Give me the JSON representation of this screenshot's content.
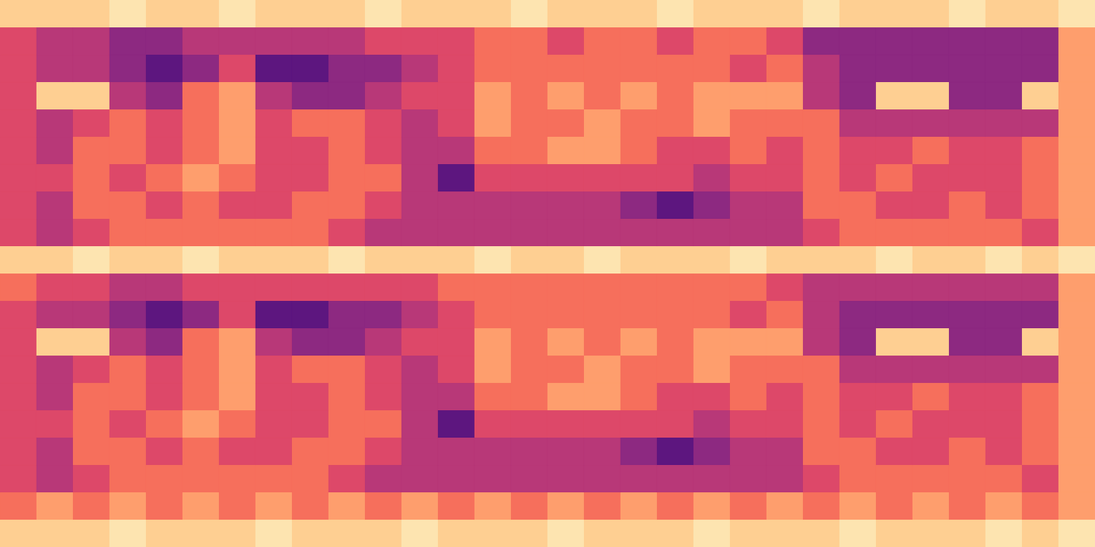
{
  "chart_data": {
    "type": "heatmap",
    "tick_labels": false,
    "grid": false,
    "color_range": [
      0,
      9
    ],
    "cells": [
      [
        8,
        8,
        8,
        9,
        8,
        8,
        9,
        8,
        8,
        8,
        9,
        8,
        8,
        8,
        9,
        8,
        8,
        8,
        9,
        8,
        8,
        8,
        9,
        8,
        8,
        8,
        9,
        8,
        8,
        9
      ],
      [
        5,
        4,
        4,
        3,
        3,
        4,
        4,
        4,
        4,
        4,
        5,
        5,
        5,
        6,
        6,
        5,
        6,
        6,
        5,
        6,
        6,
        5,
        3,
        3,
        3,
        3,
        3,
        3,
        3,
        7
      ],
      [
        5,
        4,
        4,
        3,
        2,
        3,
        5,
        2,
        2,
        3,
        3,
        4,
        5,
        6,
        6,
        6,
        6,
        6,
        6,
        6,
        5,
        6,
        4,
        3,
        3,
        3,
        3,
        3,
        3,
        7
      ],
      [
        5,
        8,
        8,
        4,
        3,
        6,
        7,
        4,
        3,
        3,
        4,
        5,
        5,
        7,
        6,
        7,
        6,
        7,
        6,
        7,
        7,
        7,
        4,
        3,
        8,
        8,
        3,
        3,
        8,
        7
      ],
      [
        5,
        4,
        5,
        6,
        5,
        6,
        7,
        5,
        6,
        6,
        5,
        4,
        5,
        7,
        6,
        6,
        7,
        6,
        6,
        7,
        6,
        6,
        6,
        4,
        4,
        4,
        4,
        4,
        4,
        7
      ],
      [
        5,
        4,
        6,
        6,
        5,
        6,
        7,
        5,
        5,
        6,
        5,
        4,
        4,
        6,
        6,
        7,
        7,
        6,
        5,
        5,
        6,
        5,
        6,
        5,
        5,
        6,
        5,
        5,
        6,
        7
      ],
      [
        5,
        5,
        6,
        5,
        6,
        7,
        6,
        5,
        5,
        6,
        6,
        4,
        2,
        5,
        5,
        5,
        5,
        5,
        5,
        4,
        5,
        5,
        6,
        5,
        6,
        5,
        5,
        5,
        6,
        7
      ],
      [
        5,
        4,
        6,
        6,
        5,
        6,
        5,
        5,
        6,
        6,
        5,
        4,
        4,
        4,
        4,
        4,
        4,
        3,
        2,
        3,
        4,
        4,
        6,
        6,
        5,
        5,
        6,
        5,
        6,
        7
      ],
      [
        5,
        4,
        5,
        6,
        6,
        6,
        6,
        6,
        6,
        5,
        4,
        4,
        4,
        4,
        4,
        4,
        4,
        4,
        4,
        4,
        4,
        4,
        5,
        6,
        6,
        6,
        6,
        6,
        5,
        7
      ],
      [
        8,
        8,
        9,
        8,
        8,
        9,
        8,
        8,
        8,
        9,
        8,
        8,
        8,
        9,
        8,
        8,
        9,
        8,
        8,
        8,
        9,
        8,
        8,
        8,
        9,
        8,
        8,
        9,
        8,
        9
      ],
      [
        6,
        5,
        5,
        4,
        4,
        5,
        5,
        5,
        5,
        5,
        5,
        5,
        6,
        6,
        6,
        6,
        6,
        6,
        6,
        6,
        6,
        5,
        4,
        4,
        4,
        4,
        4,
        4,
        4,
        7
      ],
      [
        5,
        4,
        4,
        3,
        2,
        3,
        5,
        2,
        2,
        3,
        3,
        4,
        5,
        6,
        6,
        6,
        6,
        6,
        6,
        6,
        5,
        6,
        4,
        3,
        3,
        3,
        3,
        3,
        3,
        7
      ],
      [
        5,
        8,
        8,
        4,
        3,
        6,
        7,
        4,
        3,
        3,
        4,
        5,
        5,
        7,
        6,
        7,
        6,
        7,
        6,
        7,
        7,
        7,
        4,
        3,
        8,
        8,
        3,
        3,
        8,
        7
      ],
      [
        5,
        4,
        5,
        6,
        5,
        6,
        7,
        5,
        6,
        6,
        5,
        4,
        5,
        7,
        6,
        6,
        7,
        6,
        6,
        7,
        6,
        6,
        6,
        4,
        4,
        4,
        4,
        4,
        4,
        7
      ],
      [
        5,
        4,
        6,
        6,
        5,
        6,
        7,
        5,
        5,
        6,
        5,
        4,
        4,
        6,
        6,
        7,
        7,
        6,
        5,
        5,
        6,
        5,
        6,
        5,
        5,
        6,
        5,
        5,
        6,
        7
      ],
      [
        5,
        5,
        6,
        5,
        6,
        7,
        6,
        5,
        5,
        6,
        6,
        4,
        2,
        5,
        5,
        5,
        5,
        5,
        5,
        4,
        5,
        5,
        6,
        5,
        6,
        5,
        5,
        5,
        6,
        7
      ],
      [
        5,
        4,
        6,
        6,
        5,
        6,
        5,
        5,
        6,
        6,
        5,
        4,
        4,
        4,
        4,
        4,
        4,
        3,
        2,
        3,
        4,
        4,
        6,
        6,
        5,
        5,
        6,
        5,
        6,
        7
      ],
      [
        5,
        4,
        5,
        6,
        6,
        6,
        6,
        6,
        6,
        5,
        4,
        4,
        4,
        4,
        4,
        4,
        4,
        4,
        4,
        4,
        4,
        4,
        5,
        6,
        6,
        6,
        6,
        6,
        5,
        7
      ],
      [
        6,
        7,
        6,
        7,
        6,
        7,
        6,
        7,
        6,
        7,
        6,
        7,
        6,
        7,
        6,
        7,
        6,
        7,
        6,
        7,
        6,
        7,
        6,
        7,
        6,
        7,
        6,
        7,
        6,
        7
      ],
      [
        8,
        8,
        8,
        9,
        8,
        8,
        8,
        9,
        8,
        8,
        8,
        9,
        8,
        8,
        8,
        9,
        8,
        8,
        8,
        9,
        8,
        8,
        8,
        9,
        8,
        8,
        8,
        9,
        8,
        9
      ]
    ]
  }
}
